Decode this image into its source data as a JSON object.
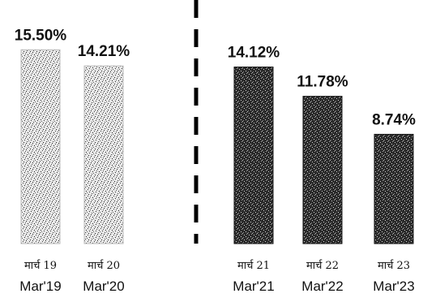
{
  "chart_data": {
    "type": "bar",
    "categories": [
      "Mar'19",
      "Mar'20",
      "Mar'21",
      "Mar'22",
      "Mar'23"
    ],
    "categories_hindi": [
      "मार्च 19",
      "मार्च 20",
      "मार्च 21",
      "मार्च 22",
      "मार्च 23"
    ],
    "values": [
      15.5,
      14.21,
      14.12,
      11.78,
      8.74
    ],
    "value_labels": [
      "15.50%",
      "14.21%",
      "14.12%",
      "11.78%",
      "8.74%"
    ],
    "bar_shading": [
      "light",
      "light",
      "dark",
      "dark",
      "dark"
    ],
    "divider_after_category": "Mar'20",
    "title": "",
    "xlabel": "",
    "ylabel": "",
    "ylim": [
      0,
      16
    ],
    "grid": false,
    "legend": "none"
  }
}
